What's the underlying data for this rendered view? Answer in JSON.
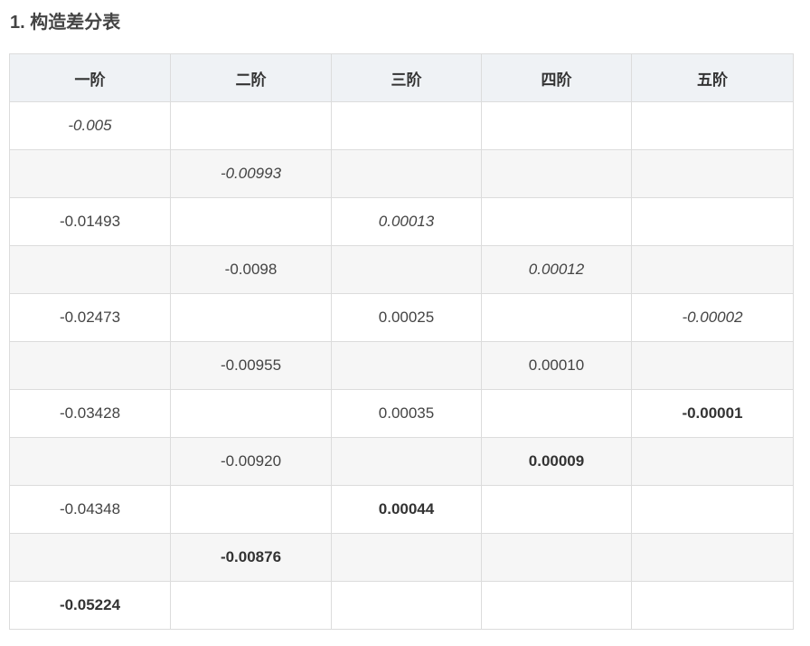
{
  "title": "1. 构造差分表",
  "headers": [
    "一阶",
    "二阶",
    "三阶",
    "四阶",
    "五阶"
  ],
  "rows": [
    [
      {
        "v": "-0.005",
        "s": "italic"
      },
      {
        "v": "",
        "s": ""
      },
      {
        "v": "",
        "s": ""
      },
      {
        "v": "",
        "s": ""
      },
      {
        "v": "",
        "s": ""
      }
    ],
    [
      {
        "v": "",
        "s": ""
      },
      {
        "v": "-0.00993",
        "s": "italic"
      },
      {
        "v": "",
        "s": ""
      },
      {
        "v": "",
        "s": ""
      },
      {
        "v": "",
        "s": ""
      }
    ],
    [
      {
        "v": "-0.01493",
        "s": ""
      },
      {
        "v": "",
        "s": ""
      },
      {
        "v": "0.00013",
        "s": "italic"
      },
      {
        "v": "",
        "s": ""
      },
      {
        "v": "",
        "s": ""
      }
    ],
    [
      {
        "v": "",
        "s": ""
      },
      {
        "v": "-0.0098",
        "s": ""
      },
      {
        "v": "",
        "s": ""
      },
      {
        "v": "0.00012",
        "s": "italic"
      },
      {
        "v": "",
        "s": ""
      }
    ],
    [
      {
        "v": "-0.02473",
        "s": ""
      },
      {
        "v": "",
        "s": ""
      },
      {
        "v": "0.00025",
        "s": ""
      },
      {
        "v": "",
        "s": ""
      },
      {
        "v": "-0.00002",
        "s": "italic"
      }
    ],
    [
      {
        "v": "",
        "s": ""
      },
      {
        "v": "-0.00955",
        "s": ""
      },
      {
        "v": "",
        "s": ""
      },
      {
        "v": "0.00010",
        "s": ""
      },
      {
        "v": "",
        "s": ""
      }
    ],
    [
      {
        "v": "-0.03428",
        "s": ""
      },
      {
        "v": "",
        "s": ""
      },
      {
        "v": "0.00035",
        "s": ""
      },
      {
        "v": "",
        "s": ""
      },
      {
        "v": "-0.00001",
        "s": "bold"
      }
    ],
    [
      {
        "v": "",
        "s": ""
      },
      {
        "v": "-0.00920",
        "s": ""
      },
      {
        "v": "",
        "s": ""
      },
      {
        "v": "0.00009",
        "s": "bold"
      },
      {
        "v": "",
        "s": ""
      }
    ],
    [
      {
        "v": "-0.04348",
        "s": ""
      },
      {
        "v": "",
        "s": ""
      },
      {
        "v": "0.00044",
        "s": "bold"
      },
      {
        "v": "",
        "s": ""
      },
      {
        "v": "",
        "s": ""
      }
    ],
    [
      {
        "v": "",
        "s": ""
      },
      {
        "v": "-0.00876",
        "s": "bold"
      },
      {
        "v": "",
        "s": ""
      },
      {
        "v": "",
        "s": ""
      },
      {
        "v": "",
        "s": ""
      }
    ],
    [
      {
        "v": "-0.05224",
        "s": "bold"
      },
      {
        "v": "",
        "s": ""
      },
      {
        "v": "",
        "s": ""
      },
      {
        "v": "",
        "s": ""
      },
      {
        "v": "",
        "s": ""
      }
    ]
  ]
}
